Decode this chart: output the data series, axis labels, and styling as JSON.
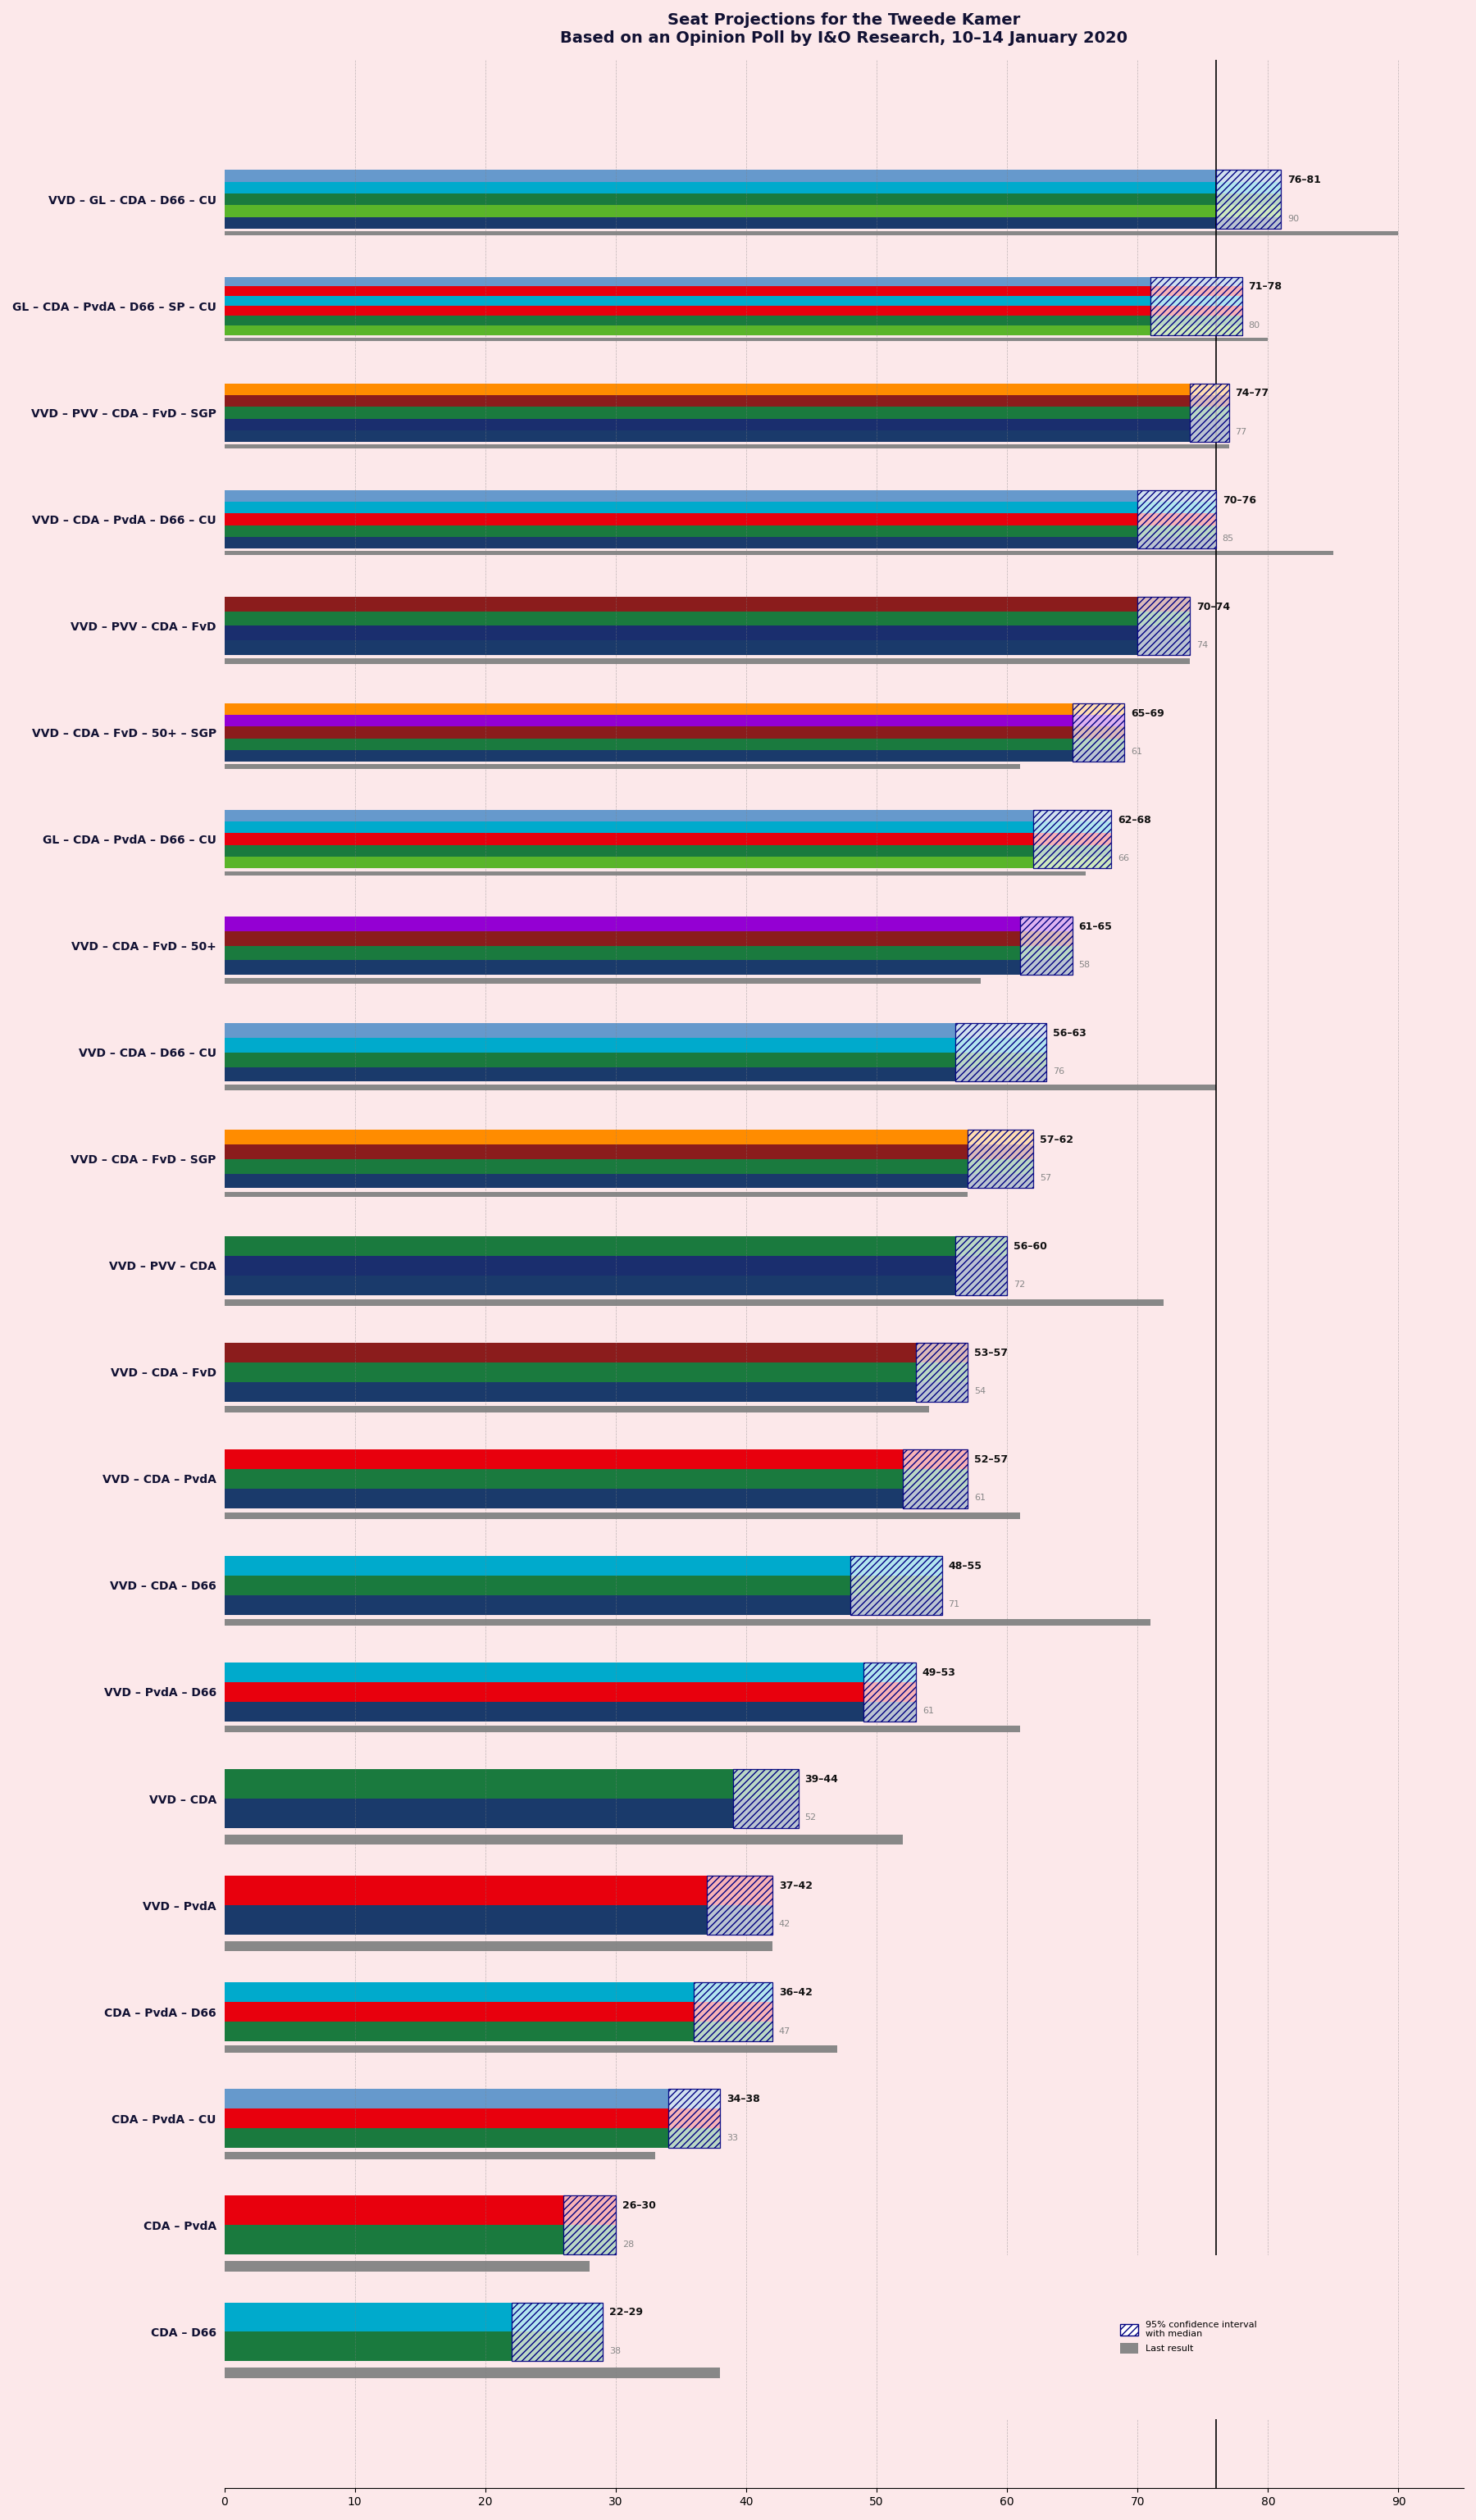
{
  "title": "Seat Projections for the Tweede Kamer",
  "subtitle": "Based on an Opinion Poll by I&O Research, 10–14 January 2020",
  "background_color": "#fce8ea",
  "coalitions": [
    {
      "name": "VVD – GL – CDA – D66 – CU",
      "low": 76,
      "high": 81,
      "last": 90,
      "underline": false
    },
    {
      "name": "GL – CDA – PvdA – D66 – SP – CU",
      "low": 71,
      "high": 78,
      "last": 80,
      "underline": false
    },
    {
      "name": "VVD – PVV – CDA – FvD – SGP",
      "low": 74,
      "high": 77,
      "last": 77,
      "underline": false
    },
    {
      "name": "VVD – CDA – PvdA – D66 – CU",
      "low": 70,
      "high": 76,
      "last": 85,
      "underline": false
    },
    {
      "name": "VVD – PVV – CDA – FvD",
      "low": 70,
      "high": 74,
      "last": 74,
      "underline": false
    },
    {
      "name": "VVD – CDA – FvD – 50+ – SGP",
      "low": 65,
      "high": 69,
      "last": 61,
      "underline": false
    },
    {
      "name": "GL – CDA – PvdA – D66 – CU",
      "low": 62,
      "high": 68,
      "last": 66,
      "underline": false
    },
    {
      "name": "VVD – CDA – FvD – 50+",
      "low": 61,
      "high": 65,
      "last": 58,
      "underline": false
    },
    {
      "name": "VVD – CDA – D66 – CU",
      "low": 56,
      "high": 63,
      "last": 76,
      "underline": true
    },
    {
      "name": "VVD – CDA – FvD – SGP",
      "low": 57,
      "high": 62,
      "last": 57,
      "underline": false
    },
    {
      "name": "VVD – PVV – CDA",
      "low": 56,
      "high": 60,
      "last": 72,
      "underline": false
    },
    {
      "name": "VVD – CDA – FvD",
      "low": 53,
      "high": 57,
      "last": 54,
      "underline": false
    },
    {
      "name": "VVD – CDA – PvdA",
      "low": 52,
      "high": 57,
      "last": 61,
      "underline": false
    },
    {
      "name": "VVD – CDA – D66",
      "low": 48,
      "high": 55,
      "last": 71,
      "underline": false
    },
    {
      "name": "VVD – PvdA – D66",
      "low": 49,
      "high": 53,
      "last": 61,
      "underline": false
    },
    {
      "name": "VVD – CDA",
      "low": 39,
      "high": 44,
      "last": 52,
      "underline": false
    },
    {
      "name": "VVD – PvdA",
      "low": 37,
      "high": 42,
      "last": 42,
      "underline": false
    },
    {
      "name": "CDA – PvdA – D66",
      "low": 36,
      "high": 42,
      "last": 47,
      "underline": false
    },
    {
      "name": "CDA – PvdA – CU",
      "low": 34,
      "high": 38,
      "last": 33,
      "underline": false
    },
    {
      "name": "CDA – PvdA",
      "low": 26,
      "high": 30,
      "last": 28,
      "underline": false
    },
    {
      "name": "CDA – D66",
      "low": 22,
      "high": 29,
      "last": 38,
      "underline": false
    }
  ],
  "party_colors": {
    "VVD": "#1a3a6b",
    "GL": "#5ab52a",
    "CDA": "#1a7a3e",
    "D66": "#00aacc",
    "CU": "#6699cc",
    "PvdA": "#e8000d",
    "SP": "#e8000d",
    "PVV": "#1a2e6e",
    "FvD": "#8b1c1c",
    "SGP": "#ff8c00",
    "50+": "#9400d3"
  },
  "coalition_parties": {
    "VVD – GL – CDA – D66 – CU": [
      "VVD",
      "GL",
      "CDA",
      "D66",
      "CU"
    ],
    "GL – CDA – PvdA – D66 – SP – CU": [
      "GL",
      "CDA",
      "PvdA",
      "D66",
      "SP",
      "CU"
    ],
    "VVD – PVV – CDA – FvD – SGP": [
      "VVD",
      "PVV",
      "CDA",
      "FvD",
      "SGP"
    ],
    "VVD – CDA – PvdA – D66 – CU": [
      "VVD",
      "CDA",
      "PvdA",
      "D66",
      "CU"
    ],
    "VVD – PVV – CDA – FvD": [
      "VVD",
      "PVV",
      "CDA",
      "FvD"
    ],
    "VVD – CDA – FvD – 50+ – SGP": [
      "VVD",
      "CDA",
      "FvD",
      "50+",
      "SGP"
    ],
    "GL – CDA – PvdA – D66 – CU": [
      "GL",
      "CDA",
      "PvdA",
      "D66",
      "CU"
    ],
    "VVD – CDA – FvD – 50+": [
      "VVD",
      "CDA",
      "FvD",
      "50+"
    ],
    "VVD – CDA – D66 – CU": [
      "VVD",
      "CDA",
      "D66",
      "CU"
    ],
    "VVD – CDA – FvD – SGP": [
      "VVD",
      "CDA",
      "FvD",
      "SGP"
    ],
    "VVD – PVV – CDA": [
      "VVD",
      "PVV",
      "CDA"
    ],
    "VVD – CDA – FvD": [
      "VVD",
      "CDA",
      "FvD"
    ],
    "VVD – CDA – PvdA": [
      "VVD",
      "CDA",
      "PvdA"
    ],
    "VVD – CDA – D66": [
      "VVD",
      "CDA",
      "D66"
    ],
    "VVD – PvdA – D66": [
      "VVD",
      "PvdA",
      "D66"
    ],
    "VVD – CDA": [
      "VVD",
      "CDA"
    ],
    "VVD – PvdA": [
      "VVD",
      "PvdA"
    ],
    "CDA – PvdA – D66": [
      "CDA",
      "PvdA",
      "D66"
    ],
    "CDA – PvdA – CU": [
      "CDA",
      "PvdA",
      "CU"
    ],
    "CDA – PvdA": [
      "CDA",
      "PvdA"
    ],
    "CDA – D66": [
      "CDA",
      "D66"
    ]
  },
  "xlim": [
    0,
    95
  ],
  "majority_line": 76,
  "bar_height": 0.55,
  "gray_color": "#b0b0b0",
  "last_result_color": "#888888",
  "ci_color": "#1a1a1a",
  "hatched_color": "#555555"
}
